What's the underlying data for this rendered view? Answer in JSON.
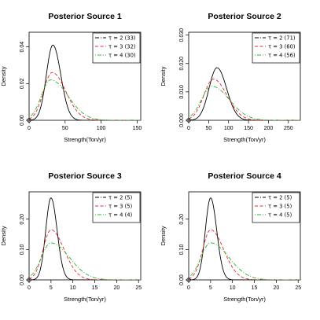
{
  "chart_data": [
    {
      "type": "line",
      "title": "Posterior Source 1",
      "xlabel": "Strength(Ton/yr)",
      "ylabel": "Density",
      "xlim": [
        0,
        155
      ],
      "ylim": [
        0,
        0.048
      ],
      "xticks": [
        0,
        50,
        100,
        150
      ],
      "yticks": [
        0.0,
        0.02,
        0.04
      ],
      "ytick_labels": [
        "0.00",
        "0.02",
        "0.04"
      ],
      "legend_position": "top-right",
      "series": [
        {
          "name": "τ = 2 (33)",
          "color": "#000000",
          "dash": "solid",
          "legend_dash": "dashdot",
          "peak_x": 33,
          "peak_y": 0.041,
          "sd_left": 9,
          "sd_right": 11
        },
        {
          "name": "τ = 3 (32)",
          "color": "#e8242f",
          "dash": "dashed",
          "peak_x": 32,
          "peak_y": 0.026,
          "sd_left": 12,
          "sd_right": 19
        },
        {
          "name": "τ = 4 (30)",
          "color": "#2cb52c",
          "dash": "dotdash",
          "peak_x": 30,
          "peak_y": 0.022,
          "sd_left": 13,
          "sd_right": 24
        }
      ]
    },
    {
      "type": "line",
      "title": "Posterior Source 2",
      "xlabel": "Strength(Ton/yr)",
      "ylabel": "Density",
      "xlim": [
        0,
        280
      ],
      "ylim": [
        0,
        0.031
      ],
      "xticks": [
        0,
        50,
        100,
        150,
        200,
        250
      ],
      "yticks": [
        0.0,
        0.01,
        0.02,
        0.03
      ],
      "ytick_labels": [
        "0.000",
        "0.010",
        "0.020",
        "0.030"
      ],
      "legend_position": "top-right",
      "series": [
        {
          "name": "τ = 2 (71)",
          "color": "#000000",
          "dash": "solid",
          "legend_dash": "dashdot",
          "peak_x": 71,
          "peak_y": 0.0185,
          "sd_left": 20,
          "sd_right": 24
        },
        {
          "name": "τ = 3 (60)",
          "color": "#e8242f",
          "dash": "dashed",
          "peak_x": 62,
          "peak_y": 0.0145,
          "sd_left": 24,
          "sd_right": 34
        },
        {
          "name": "τ = 4 (56)",
          "color": "#2cb52c",
          "dash": "dotdash",
          "peak_x": 58,
          "peak_y": 0.012,
          "sd_left": 26,
          "sd_right": 44
        }
      ]
    },
    {
      "type": "line",
      "title": "Posterior Source 3",
      "xlabel": "Strength(Ton/yr)",
      "ylabel": "Density",
      "xlim": [
        0,
        25.5
      ],
      "ylim": [
        0,
        0.29
      ],
      "xticks": [
        0,
        5,
        10,
        15,
        20,
        25
      ],
      "yticks": [
        0.0,
        0.1,
        0.2
      ],
      "ytick_labels": [
        "0.00",
        "0.10",
        "0.20"
      ],
      "legend_position": "top-right",
      "series": [
        {
          "name": "τ = 2 (5)",
          "color": "#000000",
          "dash": "solid",
          "legend_dash": "dashdot",
          "peak_x": 5,
          "peak_y": 0.27,
          "sd_left": 1.2,
          "sd_right": 1.4
        },
        {
          "name": "τ = 3 (5)",
          "color": "#e8242f",
          "dash": "dashed",
          "peak_x": 5,
          "peak_y": 0.165,
          "sd_left": 1.8,
          "sd_right": 3.0
        },
        {
          "name": "τ = 4 (4)",
          "color": "#2cb52c",
          "dash": "dotdash",
          "peak_x": 5,
          "peak_y": 0.122,
          "sd_left": 2.2,
          "sd_right": 4.2
        }
      ]
    },
    {
      "type": "line",
      "title": "Posterior Source 4",
      "xlabel": "Strength(Ton/yr)",
      "ylabel": "Density",
      "xlim": [
        0,
        25.5
      ],
      "ylim": [
        0,
        0.29
      ],
      "xticks": [
        0,
        5,
        10,
        15,
        20,
        25
      ],
      "yticks": [
        0.0,
        0.1,
        0.2
      ],
      "ytick_labels": [
        "0.00",
        "0.10",
        "0.20"
      ],
      "legend_position": "top-right",
      "series": [
        {
          "name": "τ = 2 (5)",
          "color": "#000000",
          "dash": "solid",
          "legend_dash": "dashdot",
          "peak_x": 5,
          "peak_y": 0.27,
          "sd_left": 1.2,
          "sd_right": 1.4
        },
        {
          "name": "τ = 3 (5)",
          "color": "#e8242f",
          "dash": "dashed",
          "peak_x": 5,
          "peak_y": 0.165,
          "sd_left": 1.8,
          "sd_right": 3.0
        },
        {
          "name": "τ = 4 (5)",
          "color": "#2cb52c",
          "dash": "dotdash",
          "peak_x": 5,
          "peak_y": 0.122,
          "sd_left": 2.2,
          "sd_right": 4.2
        }
      ]
    }
  ]
}
